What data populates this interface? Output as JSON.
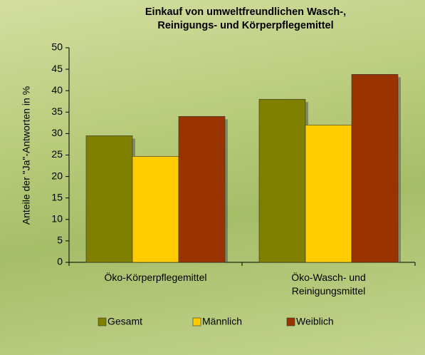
{
  "chart_data": {
    "type": "bar",
    "title": "Einkauf von umweltfreundlichen Wasch-, Reinigungs- und Körperpflegemittel",
    "y_label": "Anteile der \"Ja\"-Antworten in %",
    "categories": [
      "Öko-Körperpflegemittel",
      "Öko-Wasch- und Reinigungsmittel"
    ],
    "series": [
      {
        "name": "Gesamt",
        "color": "#7f7f00",
        "values": [
          29.5,
          38
        ]
      },
      {
        "name": "Männlich",
        "color": "#ffcc00",
        "values": [
          24.7,
          32
        ]
      },
      {
        "name": "Weiblich",
        "color": "#993300",
        "values": [
          34,
          43.8
        ]
      }
    ],
    "ylim": [
      0,
      50
    ],
    "yticks": [
      0,
      5,
      10,
      15,
      20,
      25,
      30,
      35,
      40,
      45,
      50
    ],
    "legend": "bottom"
  }
}
